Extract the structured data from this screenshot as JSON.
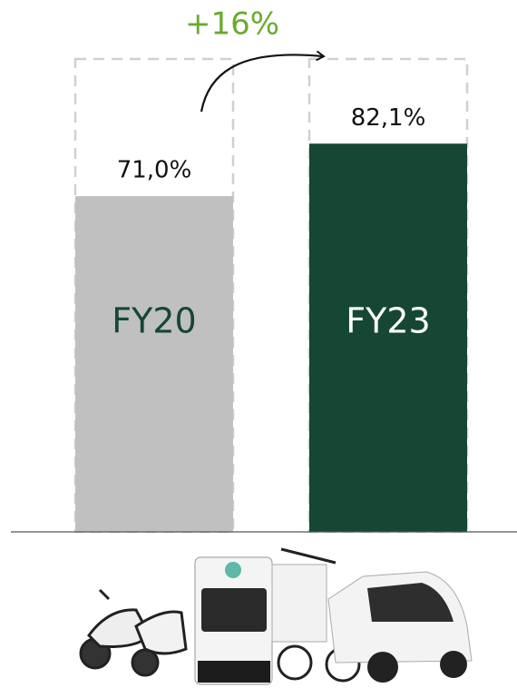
{
  "chart_data": {
    "type": "bar",
    "annotation": "+16%",
    "annotation_color": "#6aaa2e",
    "categories": [
      "FY20",
      "FY23"
    ],
    "values": [
      71.0,
      82.1
    ],
    "value_labels": [
      "71,0%",
      "82,1%"
    ],
    "colors": [
      "#c0c0c0",
      "#154734"
    ],
    "category_label_colors": [
      "#154734",
      "#ffffff"
    ],
    "ylim": [
      0,
      100
    ]
  }
}
